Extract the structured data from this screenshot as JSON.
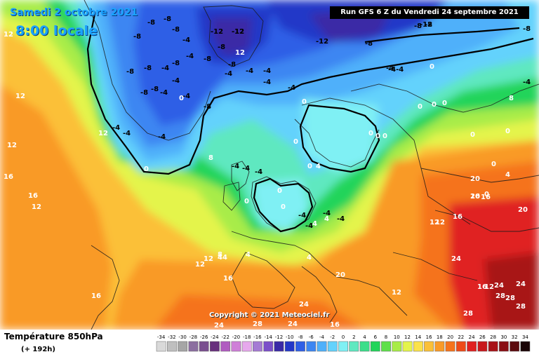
{
  "header": {
    "date": "Samedi 2 octobre 2021",
    "time": "8:00 locale",
    "run": "Run GFS 6 Z du Vendredi 24 septembre 2021"
  },
  "copyright": "Copyright © 2021 Meteociel.fr",
  "legend": {
    "title": "Température 850hPa",
    "subtitle": "(+ 192h)",
    "scale": [
      {
        "label": "-34",
        "color": "#d9d9d9"
      },
      {
        "label": "-32",
        "color": "#bfbfbf"
      },
      {
        "label": "-30",
        "color": "#a6a6a6"
      },
      {
        "label": "-28",
        "color": "#8c6fa0"
      },
      {
        "label": "-26",
        "color": "#7a4f8f"
      },
      {
        "label": "-24",
        "color": "#68307d"
      },
      {
        "label": "-22",
        "color": "#b05cc0"
      },
      {
        "label": "-20",
        "color": "#cf7fd8"
      },
      {
        "label": "-18",
        "color": "#e6a8ec"
      },
      {
        "label": "-16",
        "color": "#a57bd4"
      },
      {
        "label": "-14",
        "color": "#7b4fc9"
      },
      {
        "label": "-12",
        "color": "#3a2aa6"
      },
      {
        "label": "-10",
        "color": "#2438c8"
      },
      {
        "label": "-8",
        "color": "#2f5fe6"
      },
      {
        "label": "-6",
        "color": "#3c86f2"
      },
      {
        "label": "-4",
        "color": "#4fb0fa"
      },
      {
        "label": "-2",
        "color": "#64d2fc"
      },
      {
        "label": "0",
        "color": "#7ff0f4"
      },
      {
        "label": "2",
        "color": "#5fe8c0"
      },
      {
        "label": "4",
        "color": "#3cde8a"
      },
      {
        "label": "6",
        "color": "#22d45a"
      },
      {
        "label": "8",
        "color": "#5fe04a"
      },
      {
        "label": "10",
        "color": "#a8ec48"
      },
      {
        "label": "12",
        "color": "#e4f44c"
      },
      {
        "label": "14",
        "color": "#fbe24a"
      },
      {
        "label": "16",
        "color": "#fbc038"
      },
      {
        "label": "18",
        "color": "#f99a28"
      },
      {
        "label": "20",
        "color": "#f5731c"
      },
      {
        "label": "22",
        "color": "#ee4a18"
      },
      {
        "label": "24",
        "color": "#e02020"
      },
      {
        "label": "26",
        "color": "#c8181c"
      },
      {
        "label": "28",
        "color": "#a81218"
      },
      {
        "label": "30",
        "color": "#8a0e14"
      },
      {
        "label": "32",
        "color": "#5c0a0e"
      },
      {
        "label": "34",
        "color": "#1a0406"
      }
    ]
  },
  "map": {
    "iso_labels": [
      {
        "text": "-12",
        "color": "#000000"
      },
      {
        "text": "-8",
        "color": "#000000"
      },
      {
        "text": "-8",
        "color": "#000000"
      },
      {
        "text": "-8",
        "color": "#000000"
      },
      {
        "text": "-8",
        "color": "#000000"
      },
      {
        "text": "-4",
        "color": "#000000"
      },
      {
        "text": "-4",
        "color": "#000000"
      },
      {
        "text": "-8",
        "color": "#000000"
      },
      {
        "text": "-4",
        "color": "#000000"
      },
      {
        "text": "-8",
        "color": "#000000"
      },
      {
        "text": "-8",
        "color": "#000000"
      },
      {
        "text": "-12",
        "color": "#000000"
      },
      {
        "text": "-8",
        "color": "#000000"
      },
      {
        "text": "-8",
        "color": "#000000"
      },
      {
        "text": "-8",
        "color": "#000000"
      },
      {
        "text": "-8",
        "color": "#000000"
      },
      {
        "text": "-12",
        "color": "#000000"
      },
      {
        "text": "-8",
        "color": "#000000"
      },
      {
        "text": "-8",
        "color": "#000000"
      },
      {
        "text": "-8",
        "color": "#000000"
      },
      {
        "text": "-8",
        "color": "#000000"
      },
      {
        "text": "-4",
        "color": "#000000"
      },
      {
        "text": "-4",
        "color": "#000000"
      },
      {
        "text": "-4",
        "color": "#000000"
      },
      {
        "text": "-4",
        "color": "#000000"
      },
      {
        "text": "-4",
        "color": "#000000"
      },
      {
        "text": "-8",
        "color": "#000000"
      },
      {
        "text": "-4",
        "color": "#000000"
      },
      {
        "text": "-8",
        "color": "#000000"
      },
      {
        "text": "-4",
        "color": "#000000"
      },
      {
        "text": "-4",
        "color": "#000000"
      },
      {
        "text": "-4",
        "color": "#000000"
      },
      {
        "text": "-4",
        "color": "#000000"
      },
      {
        "text": "0",
        "color": "#ffffff"
      },
      {
        "text": "-4",
        "color": "#000000"
      },
      {
        "text": "-4",
        "color": "#000000"
      },
      {
        "text": "0",
        "color": "#ffffff"
      },
      {
        "text": "0",
        "color": "#ffffff"
      },
      {
        "text": "-4",
        "color": "#000000"
      },
      {
        "text": "0",
        "color": "#ffffff"
      },
      {
        "text": "-4",
        "color": "#000000"
      },
      {
        "text": "8",
        "color": "#ffffff"
      },
      {
        "text": "12",
        "color": "#ffffff"
      },
      {
        "text": "12",
        "color": "#ffffff"
      },
      {
        "text": "12",
        "color": "#ffffff"
      },
      {
        "text": "12",
        "color": "#ffffff"
      },
      {
        "text": "12",
        "color": "#ffffff"
      },
      {
        "text": "16",
        "color": "#ffffff"
      },
      {
        "text": "16",
        "color": "#ffffff"
      },
      {
        "text": "16",
        "color": "#ffffff"
      },
      {
        "text": "12",
        "color": "#ffffff"
      },
      {
        "text": "12",
        "color": "#ffffff"
      },
      {
        "text": "16",
        "color": "#ffffff"
      },
      {
        "text": "-4",
        "color": "#000000"
      },
      {
        "text": "0",
        "color": "#ffffff"
      },
      {
        "text": "-4",
        "color": "#000000"
      },
      {
        "text": "0",
        "color": "#ffffff"
      },
      {
        "text": "0",
        "color": "#ffffff"
      },
      {
        "text": "-4",
        "color": "#000000"
      },
      {
        "text": "4",
        "color": "#ffffff"
      },
      {
        "text": "4",
        "color": "#ffffff"
      },
      {
        "text": "4",
        "color": "#ffffff"
      },
      {
        "text": "-4",
        "color": "#000000"
      },
      {
        "text": "-4",
        "color": "#000000"
      },
      {
        "text": "0",
        "color": "#ffffff"
      },
      {
        "text": "0",
        "color": "#ffffff"
      },
      {
        "text": "0",
        "color": "#ffffff"
      },
      {
        "text": "0",
        "color": "#ffffff"
      },
      {
        "text": "0",
        "color": "#ffffff"
      },
      {
        "text": "8",
        "color": "#ffffff"
      },
      {
        "text": "-4",
        "color": "#000000"
      },
      {
        "text": "-4-4",
        "color": "#000000"
      },
      {
        "text": "0",
        "color": "#ffffff"
      },
      {
        "text": "0",
        "color": "#ffffff"
      },
      {
        "text": "0",
        "color": "#ffffff"
      },
      {
        "text": "0",
        "color": "#ffffff"
      },
      {
        "text": "0",
        "color": "#ffffff"
      },
      {
        "text": "0",
        "color": "#ffffff"
      },
      {
        "text": "0",
        "color": "#ffffff"
      },
      {
        "text": "4",
        "color": "#ffffff"
      },
      {
        "text": "12",
        "color": "#ffffff"
      },
      {
        "text": "16",
        "color": "#ffffff"
      },
      {
        "text": "16",
        "color": "#ffffff"
      },
      {
        "text": "20",
        "color": "#ffffff"
      },
      {
        "text": "16",
        "color": "#ffffff"
      },
      {
        "text": "20",
        "color": "#ffffff"
      },
      {
        "text": "24",
        "color": "#ffffff"
      },
      {
        "text": "20",
        "color": "#ffffff"
      },
      {
        "text": "20",
        "color": "#ffffff"
      },
      {
        "text": "12",
        "color": "#ffffff"
      },
      {
        "text": "12",
        "color": "#ffffff"
      },
      {
        "text": "12",
        "color": "#ffffff"
      },
      {
        "text": "16",
        "color": "#ffffff"
      },
      {
        "text": "24",
        "color": "#ffffff"
      },
      {
        "text": "24",
        "color": "#ffffff"
      },
      {
        "text": "28",
        "color": "#ffffff"
      },
      {
        "text": "28",
        "color": "#ffffff"
      },
      {
        "text": "28",
        "color": "#ffffff"
      },
      {
        "text": "28",
        "color": "#ffffff"
      },
      {
        "text": "28",
        "color": "#ffffff"
      },
      {
        "text": "24",
        "color": "#ffffff"
      },
      {
        "text": "24",
        "color": "#ffffff"
      },
      {
        "text": "24",
        "color": "#ffffff"
      },
      {
        "text": "16",
        "color": "#ffffff"
      },
      {
        "text": "4",
        "color": "#ffffff"
      },
      {
        "text": "8",
        "color": "#ffffff"
      },
      {
        "text": "4",
        "color": "#ffffff"
      },
      {
        "text": "44",
        "color": "#ffffff"
      },
      {
        "text": "12",
        "color": "#ffffff"
      },
      {
        "text": "-12",
        "color": "#000000"
      },
      {
        "text": "-12",
        "color": "#000000"
      }
    ]
  }
}
